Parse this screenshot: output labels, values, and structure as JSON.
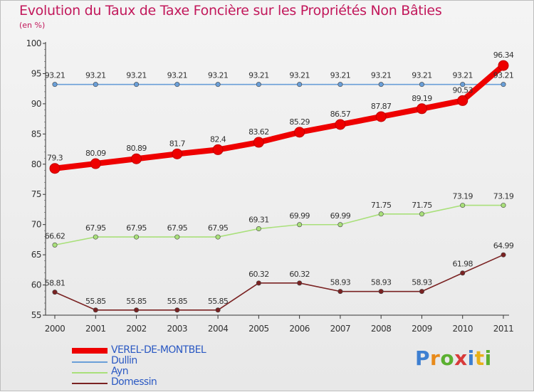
{
  "chart_data": {
    "type": "line",
    "title": "Evolution du Taux de Taxe Foncière sur les Propriétés Non Bâties",
    "unit_label": "(en %)",
    "x": [
      "2000",
      "2001",
      "2002",
      "2003",
      "2004",
      "2005",
      "2006",
      "2007",
      "2008",
      "2009",
      "2010",
      "2011"
    ],
    "ylim": [
      55,
      100
    ],
    "yticks": [
      55,
      60,
      65,
      70,
      75,
      80,
      85,
      90,
      95,
      100
    ],
    "grid": false,
    "series": [
      {
        "name": "VEREL-DE-MONTBEL",
        "color": "#ee0000",
        "values": [
          79.3,
          80.09,
          80.89,
          81.7,
          82.4,
          83.62,
          85.29,
          86.57,
          87.87,
          89.19,
          90.53,
          96.34
        ],
        "labels": [
          "79.3",
          "80.09",
          "80.89",
          "81.7",
          "82.4",
          "83.62",
          "85.29",
          "86.57",
          "87.87",
          "89.19",
          "90.53",
          "96.34"
        ]
      },
      {
        "name": "Dullin",
        "color": "#6a9fd8",
        "values": [
          93.21,
          93.21,
          93.21,
          93.21,
          93.21,
          93.21,
          93.21,
          93.21,
          93.21,
          93.21,
          93.21,
          93.21
        ],
        "labels": [
          "93.21",
          "93.21",
          "93.21",
          "93.21",
          "93.21",
          "93.21",
          "93.21",
          "93.21",
          "93.21",
          "93.21",
          "93.21",
          "93.21"
        ]
      },
      {
        "name": "Ayn",
        "color": "#a9e07a",
        "values": [
          66.62,
          67.95,
          67.95,
          67.95,
          67.95,
          69.31,
          69.99,
          69.99,
          71.75,
          71.75,
          73.19,
          73.19
        ],
        "labels": [
          "66.62",
          "67.95",
          "67.95",
          "67.95",
          "67.95",
          "69.31",
          "69.99",
          "69.99",
          "71.75",
          "71.75",
          "73.19",
          "73.19"
        ]
      },
      {
        "name": "Domessin",
        "color": "#7a2222",
        "values": [
          58.81,
          55.85,
          55.85,
          55.85,
          55.85,
          60.32,
          60.32,
          58.93,
          58.93,
          58.93,
          61.98,
          64.99
        ],
        "labels": [
          "58.81",
          "55.85",
          "55.85",
          "55.85",
          "55.85",
          "60.32",
          "60.32",
          "58.93",
          "58.93",
          "58.93",
          "61.98",
          "64.99"
        ]
      }
    ]
  },
  "logo": {
    "letters": [
      "P",
      "r",
      "o",
      "x",
      "i",
      "t",
      "i"
    ],
    "colors": [
      "#3d7fd1",
      "#e88a1a",
      "#5bb030",
      "#d83a3a",
      "#3d7fd1",
      "#e8b01a",
      "#5bb030"
    ]
  }
}
